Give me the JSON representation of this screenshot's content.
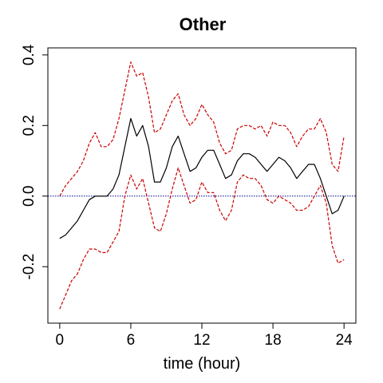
{
  "chart_data": {
    "type": "line",
    "title": "Other",
    "xlabel": "time (hour)",
    "ylabel": "",
    "xlim": [
      -1,
      25
    ],
    "ylim": [
      -0.36,
      0.42
    ],
    "xticks": [
      0,
      6,
      12,
      18,
      24
    ],
    "xtick_labels": [
      "0",
      "6",
      "12",
      "18",
      "24"
    ],
    "yticks": [
      -0.2,
      0.0,
      0.2,
      0.4
    ],
    "ytick_labels": [
      "-0.2",
      "0.0",
      "0.2",
      "0.4"
    ],
    "grid": false,
    "reference_line": {
      "y": 0,
      "color": "#00008B",
      "style": "dotted"
    },
    "series": [
      {
        "style": "solid",
        "color": "#000000",
        "x": [
          0,
          0.5,
          1,
          1.5,
          2,
          2.5,
          3,
          3.5,
          4,
          4.5,
          5,
          5.5,
          6,
          6.5,
          7,
          7.5,
          8,
          8.5,
          9,
          9.5,
          10,
          10.5,
          11,
          11.5,
          12,
          12.5,
          13,
          13.5,
          14,
          14.5,
          15,
          15.5,
          16,
          16.5,
          17,
          17.5,
          18,
          18.5,
          19,
          19.5,
          20,
          20.5,
          21,
          21.5,
          22,
          22.5,
          23,
          23.5,
          24
        ],
        "y": [
          -0.12,
          -0.11,
          -0.09,
          -0.07,
          -0.04,
          -0.01,
          0.0,
          0.0,
          0.0,
          0.02,
          0.06,
          0.14,
          0.22,
          0.17,
          0.2,
          0.14,
          0.04,
          0.04,
          0.08,
          0.14,
          0.17,
          0.12,
          0.07,
          0.08,
          0.11,
          0.13,
          0.13,
          0.09,
          0.05,
          0.06,
          0.1,
          0.12,
          0.12,
          0.11,
          0.09,
          0.07,
          0.09,
          0.11,
          0.1,
          0.08,
          0.05,
          0.07,
          0.09,
          0.09,
          0.05,
          0.0,
          -0.05,
          -0.04,
          0.0
        ]
      },
      {
        "style": "dashed",
        "color": "#CC0000",
        "x": [
          0,
          0.5,
          1,
          1.5,
          2,
          2.5,
          3,
          3.5,
          4,
          4.5,
          5,
          5.5,
          6,
          6.5,
          7,
          7.5,
          8,
          8.5,
          9,
          9.5,
          10,
          10.5,
          11,
          11.5,
          12,
          12.5,
          13,
          13.5,
          14,
          14.5,
          15,
          15.5,
          16,
          16.5,
          17,
          17.5,
          18,
          18.5,
          19,
          19.5,
          20,
          20.5,
          21,
          21.5,
          22,
          22.5,
          23,
          23.5,
          24
        ],
        "y": [
          0.0,
          0.03,
          0.05,
          0.07,
          0.1,
          0.15,
          0.18,
          0.14,
          0.14,
          0.16,
          0.22,
          0.3,
          0.38,
          0.34,
          0.35,
          0.28,
          0.18,
          0.19,
          0.23,
          0.27,
          0.29,
          0.23,
          0.2,
          0.22,
          0.26,
          0.23,
          0.21,
          0.15,
          0.12,
          0.13,
          0.19,
          0.2,
          0.2,
          0.19,
          0.2,
          0.17,
          0.21,
          0.2,
          0.2,
          0.18,
          0.14,
          0.17,
          0.19,
          0.19,
          0.22,
          0.18,
          0.09,
          0.07,
          0.17
        ]
      },
      {
        "style": "dashed",
        "color": "#CC0000",
        "x": [
          0,
          0.5,
          1,
          1.5,
          2,
          2.5,
          3,
          3.5,
          4,
          4.5,
          5,
          5.5,
          6,
          6.5,
          7,
          7.5,
          8,
          8.5,
          9,
          9.5,
          10,
          10.5,
          11,
          11.5,
          12,
          12.5,
          13,
          13.5,
          14,
          14.5,
          15,
          15.5,
          16,
          16.5,
          17,
          17.5,
          18,
          18.5,
          19,
          19.5,
          20,
          20.5,
          21,
          21.5,
          22,
          22.5,
          23,
          23.5,
          24
        ],
        "y": [
          -0.32,
          -0.28,
          -0.24,
          -0.22,
          -0.18,
          -0.15,
          -0.15,
          -0.16,
          -0.16,
          -0.13,
          -0.1,
          0.0,
          0.06,
          0.02,
          0.05,
          -0.02,
          -0.09,
          -0.1,
          -0.05,
          0.02,
          0.08,
          0.03,
          -0.02,
          -0.01,
          0.04,
          0.01,
          0.01,
          -0.04,
          -0.07,
          -0.04,
          0.04,
          0.06,
          0.05,
          0.05,
          0.03,
          -0.01,
          -0.02,
          0.0,
          -0.01,
          -0.02,
          -0.04,
          -0.04,
          -0.03,
          0.0,
          0.03,
          -0.02,
          -0.14,
          -0.19,
          -0.18
        ]
      }
    ]
  }
}
